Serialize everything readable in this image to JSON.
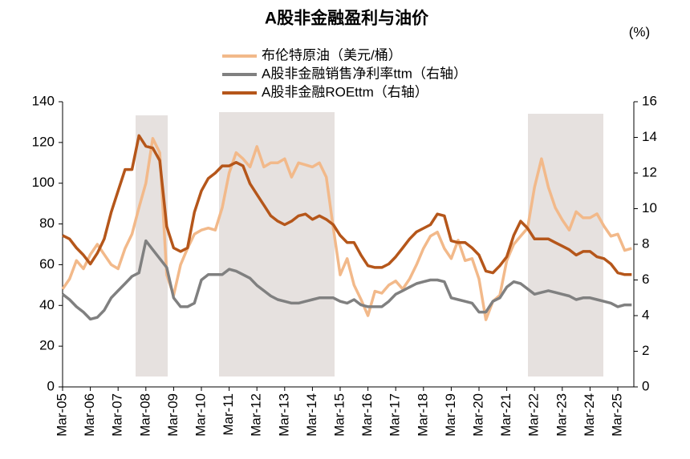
{
  "chart_data": {
    "type": "line",
    "title": "A股非金融盈利与油价",
    "y2_label": "(%)",
    "categories": [
      "Mar-05",
      null,
      null,
      null,
      "Mar-06",
      null,
      null,
      null,
      "Mar-07",
      null,
      null,
      null,
      "Mar-08",
      null,
      null,
      null,
      "Mar-09",
      null,
      null,
      null,
      "Mar-10",
      null,
      null,
      null,
      "Mar-11",
      null,
      null,
      null,
      "Mar-12",
      null,
      null,
      null,
      "Mar-13",
      null,
      null,
      null,
      "Mar-14",
      null,
      null,
      null,
      "Mar-15",
      null,
      null,
      null,
      "Mar-16",
      null,
      null,
      null,
      "Mar-17",
      null,
      null,
      null,
      "Mar-18",
      null,
      null,
      null,
      "Mar-19",
      null,
      null,
      null,
      "Mar-20",
      null,
      null,
      null,
      "Mar-21",
      null,
      null,
      null,
      "Mar-22",
      null,
      null,
      null,
      "Mar-23",
      null,
      null,
      null,
      "Mar-24",
      null,
      null,
      null,
      "Mar-25",
      null,
      null
    ],
    "series": [
      {
        "name": "布伦特原油（美元/桶）",
        "color": "#f2b98a",
        "axis": "y",
        "values": [
          48,
          53,
          62,
          58,
          65,
          70,
          65,
          60,
          58,
          68,
          75,
          88,
          100,
          122,
          115,
          55,
          45,
          60,
          68,
          75,
          77,
          78,
          77,
          88,
          105,
          115,
          112,
          108,
          118,
          108,
          110,
          110,
          112,
          103,
          110,
          109,
          108,
          110,
          103,
          78,
          55,
          63,
          50,
          43,
          35,
          47,
          46,
          50,
          52,
          48,
          53,
          60,
          68,
          74,
          76,
          68,
          63,
          72,
          62,
          63,
          53,
          33,
          42,
          45,
          62,
          70,
          74,
          78,
          98,
          112,
          98,
          88,
          82,
          77,
          86,
          83,
          83,
          85,
          79,
          74,
          75,
          67,
          68
        ]
      },
      {
        "name": "A股非金融销售净利率ttm（右轴）",
        "color": "#808080",
        "axis": "y2",
        "values": [
          5.2,
          4.9,
          4.5,
          4.2,
          3.8,
          3.9,
          4.3,
          5.0,
          5.4,
          5.8,
          6.2,
          6.4,
          8.2,
          7.7,
          7.2,
          6.7,
          5.0,
          4.5,
          4.5,
          4.7,
          6.0,
          6.3,
          6.3,
          6.3,
          6.6,
          6.5,
          6.3,
          6.1,
          5.7,
          5.4,
          5.1,
          4.9,
          4.8,
          4.7,
          4.7,
          4.8,
          4.9,
          5.0,
          5.0,
          5.0,
          4.8,
          4.7,
          4.9,
          4.6,
          4.5,
          4.5,
          4.5,
          4.8,
          5.2,
          5.4,
          5.6,
          5.8,
          5.9,
          6.0,
          6.0,
          5.9,
          5.0,
          4.9,
          4.8,
          4.7,
          4.2,
          4.2,
          4.8,
          5.0,
          5.6,
          5.9,
          5.8,
          5.5,
          5.2,
          5.3,
          5.4,
          5.3,
          5.2,
          5.1,
          4.9,
          5.0,
          5.0,
          4.9,
          4.8,
          4.7,
          4.5,
          4.6,
          4.6
        ]
      },
      {
        "name": "A股非金融ROEttm（右轴）",
        "color": "#b5561a",
        "axis": "y2",
        "values": [
          8.5,
          8.3,
          7.8,
          7.4,
          6.9,
          7.5,
          8.3,
          9.8,
          11.0,
          12.2,
          12.2,
          14.1,
          13.5,
          13.4,
          12.7,
          9.0,
          7.8,
          7.6,
          7.8,
          9.8,
          11.0,
          11.7,
          12.0,
          12.4,
          12.4,
          12.6,
          12.4,
          11.4,
          10.8,
          10.2,
          9.6,
          9.3,
          9.1,
          9.3,
          9.6,
          9.7,
          9.4,
          9.6,
          9.4,
          9.1,
          8.5,
          8.1,
          8.1,
          7.4,
          6.8,
          6.7,
          6.7,
          6.9,
          7.3,
          7.8,
          8.3,
          8.7,
          8.9,
          9.1,
          9.7,
          9.6,
          8.2,
          8.1,
          8.1,
          7.8,
          7.4,
          6.5,
          6.4,
          6.8,
          7.3,
          8.5,
          9.3,
          8.9,
          8.3,
          8.3,
          8.3,
          8.1,
          7.9,
          7.7,
          7.4,
          7.6,
          7.6,
          7.3,
          7.2,
          6.9,
          6.4,
          6.3,
          6.3
        ]
      }
    ],
    "ylim": [
      0,
      140
    ],
    "yticks": [
      0,
      20,
      40,
      60,
      80,
      100,
      120,
      140
    ],
    "y2lim": [
      0,
      16
    ],
    "y2ticks": [
      0,
      2,
      4,
      6,
      8,
      10,
      12,
      14,
      16
    ],
    "grid": false
  }
}
